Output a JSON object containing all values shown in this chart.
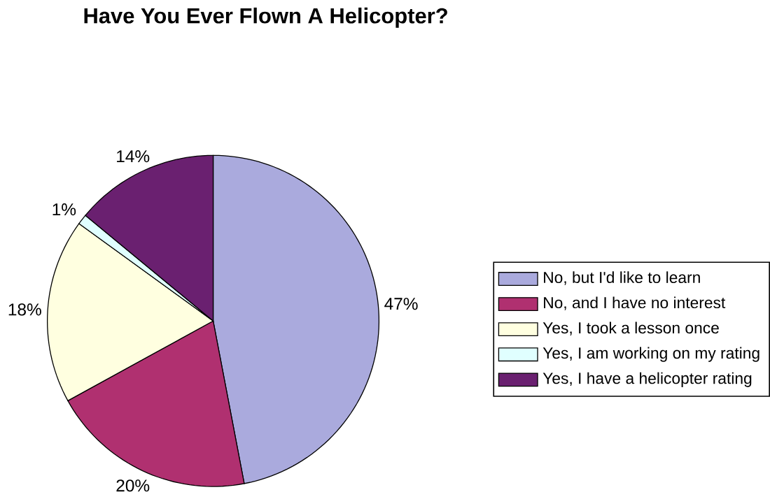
{
  "chart_data": {
    "type": "pie",
    "title": "Have You Ever Flown A Helicopter?",
    "categories": [
      "No, but I'd like to learn",
      "No, and I have no interest",
      "Yes, I took a lesson once",
      "Yes, I am working on my rating",
      "Yes, I have a helicopter rating"
    ],
    "values": [
      47,
      20,
      18,
      1,
      14
    ],
    "colors": [
      "#aaaadd",
      "#b03070",
      "#ffffe0",
      "#e0ffff",
      "#6a2070"
    ],
    "value_labels": [
      "47%",
      "20%",
      "18%",
      "1%",
      "14%"
    ],
    "legend": "right"
  }
}
